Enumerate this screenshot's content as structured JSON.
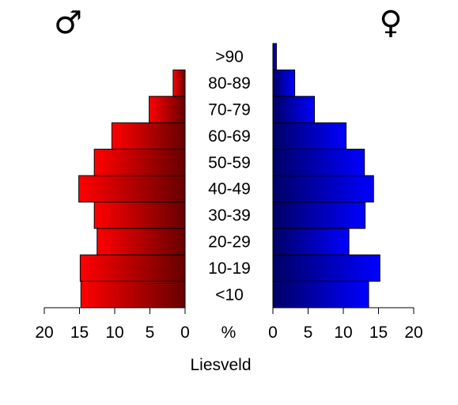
{
  "chart_data": {
    "type": "bar",
    "title": "Liesveld",
    "center_unit": "%",
    "categories": [
      "<10",
      "10-19",
      "20-29",
      "30-39",
      "40-49",
      "50-59",
      "60-69",
      "70-79",
      "80-89",
      ">90"
    ],
    "series": [
      {
        "name": "♂",
        "values": [
          14.8,
          14.9,
          12.5,
          12.9,
          15.1,
          12.9,
          10.4,
          5.1,
          1.7,
          0.0
        ],
        "colors": [
          "#ff0000",
          "#660000"
        ]
      },
      {
        "name": "♀",
        "values": [
          13.6,
          15.2,
          10.8,
          13.1,
          14.3,
          13.0,
          10.4,
          5.9,
          3.1,
          0.5
        ],
        "colors": [
          "#0000ff",
          "#000066"
        ]
      }
    ],
    "xlim": [
      0,
      20
    ],
    "xticks": [
      "20",
      "15",
      "10",
      "5",
      "0",
      "0",
      "5",
      "10",
      "15",
      "20"
    ],
    "xtick_values": [
      20,
      15,
      10,
      5,
      0,
      0,
      5,
      10,
      15,
      20
    ],
    "grid": false,
    "legend": "none"
  }
}
